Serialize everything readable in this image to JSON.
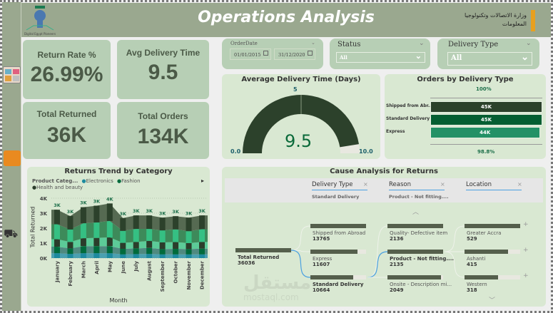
{
  "header": {
    "title": "Operations Analysis",
    "logo_left_text": "Digital Egypt Pioneers",
    "logo_right_text": "وزارة الاتصالات وتكنولوجيا المعلومات"
  },
  "kpis": {
    "return_rate": {
      "label": "Return Rate %",
      "value": "26.99%"
    },
    "avg_delivery": {
      "label": "Avg Delivery Time",
      "value": "9.5"
    },
    "total_returned": {
      "label": "Total Returned",
      "value": "36K"
    },
    "total_orders": {
      "label": "Total Orders",
      "value": "134K"
    }
  },
  "filters": {
    "order_date": {
      "label": "OrderDate",
      "start": "01/01/2015",
      "end": "31/12/2020"
    },
    "status": {
      "label": "Status",
      "value": "All"
    },
    "delivery_type": {
      "label": "Delivery Type",
      "value": "All"
    }
  },
  "gauge": {
    "title": "Average Delivery Time (Days)",
    "value": 9.5,
    "value_label": "9.5",
    "min": "0.0",
    "max": "10.0",
    "target": "5",
    "min_num": 0,
    "max_num": 10,
    "target_num": 5,
    "fill_color": "#2c412b"
  },
  "orders_by_type": {
    "title": "Orders by Delivery Type",
    "top_pct": "100%",
    "bottom_pct": "98.8%",
    "rows": [
      {
        "label": "Shipped from Abr...",
        "value": "45K",
        "num": 45,
        "color": "#2c412b"
      },
      {
        "label": "Standard Delivery",
        "value": "45K",
        "num": 45,
        "color": "#045e32"
      },
      {
        "label": "Express",
        "value": "44K",
        "num": 44,
        "color": "#239166"
      }
    ]
  },
  "chart_data": {
    "type": "area",
    "title": "Returns Trend by Category",
    "legend_title": "Product Categ...",
    "legend_position": "top",
    "xlabel": "Month",
    "ylabel": "Total Returned",
    "ylim": [
      0,
      4000
    ],
    "yticks": [
      "0K",
      "1K",
      "2K",
      "3K",
      "4K"
    ],
    "categories": [
      "January",
      "February",
      "March",
      "April",
      "May",
      "June",
      "July",
      "August",
      "September",
      "October",
      "November",
      "December"
    ],
    "data_labels": [
      "3K",
      "3K",
      "3K",
      "3K",
      "4K",
      "3K",
      "3K",
      "3K",
      "3K",
      "3K",
      "3K",
      "3K"
    ],
    "series": [
      {
        "name": "Electronics",
        "color": "#1d8a9e",
        "values": [
          330,
          280,
          330,
          330,
          330,
          250,
          270,
          280,
          250,
          250,
          250,
          250
        ]
      },
      {
        "name": "Fashion",
        "color": "#006b3c",
        "values": [
          430,
          370,
          470,
          470,
          470,
          370,
          380,
          400,
          350,
          370,
          350,
          380
        ]
      },
      {
        "name": "Health and beauty",
        "color": "#2b3d2b",
        "values": [
          500,
          430,
          530,
          550,
          580,
          400,
          430,
          470,
          450,
          450,
          400,
          450
        ]
      },
      {
        "color": "#35c083",
        "values": [
          1000,
          830,
          1000,
          1030,
          1100,
          800,
          870,
          800,
          800,
          850,
          800,
          850
        ]
      },
      {
        "color": "#2c412b",
        "values": [
          970,
          900,
          1070,
          1120,
          1170,
          850,
          900,
          900,
          850,
          880,
          900,
          920
        ]
      }
    ]
  },
  "cause": {
    "title": "Cause Analysis for Returns",
    "levels": [
      {
        "label": "Delivery Type",
        "selected": "Standard Delivery"
      },
      {
        "label": "Reason",
        "selected": "Product - Not fitting...."
      },
      {
        "label": "Location",
        "selected": ""
      }
    ],
    "root": {
      "label": "Total Returned",
      "value": "36036",
      "num": 36036
    },
    "delivery": [
      {
        "label": "Shipped from Abroad",
        "value": "13765",
        "num": 13765
      },
      {
        "label": "Express",
        "value": "11607",
        "num": 11607
      },
      {
        "label": "Standard Delivery",
        "value": "10664",
        "num": 10664,
        "selected": true
      }
    ],
    "reason": [
      {
        "label": "Quality- Defective item",
        "value": "2136",
        "num": 2136
      },
      {
        "label": "Product - Not fitting....",
        "value": "2135",
        "num": 2135,
        "selected": true
      },
      {
        "label": "Onsite - Description mi...",
        "value": "2049",
        "num": 2049
      }
    ],
    "location": [
      {
        "label": "Greater Accra",
        "value": "529",
        "num": 529
      },
      {
        "label": "Ashanti",
        "value": "415",
        "num": 415
      },
      {
        "label": "Western",
        "value": "318",
        "num": 318
      }
    ]
  },
  "watermark": {
    "arabic": "مستقل",
    "latin": "mostaql.com"
  }
}
